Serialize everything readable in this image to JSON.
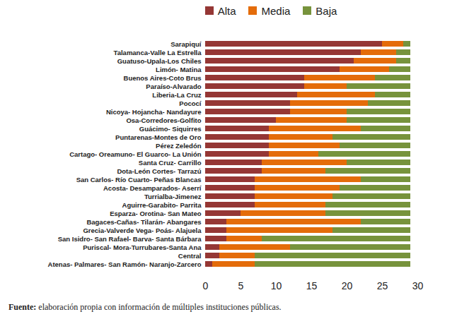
{
  "chart_data": {
    "type": "bar",
    "orientation": "horizontal",
    "stacked": true,
    "grid": false,
    "legend": "top",
    "caption": "Fuente: elaboración propia con información de múltiples instituciones públicas.",
    "categories": [
      "Sarapiquí",
      "Talamanca-Valle La Estrella",
      "Guatuso-Upala-Los Chiles",
      "Limón- Matina",
      "Buenos Aires-Coto Brus",
      "Paraíso-Alvarado",
      "Liberia-La Cruz",
      "Pococí",
      "Nicoya- Hojancha- Nandayure",
      "Osa-Corredores-Golfito",
      "Guácimo- Siquirres",
      "Puntarenas-Montes de Oro",
      "Pérez Zeledón",
      "Cartago- Oreamuno- El Guarco- La Unión",
      "Santa Cruz- Carrillo",
      "Dota-León Cortes- Tarrazú",
      "San Carlos- Río Cuarto- Peñas Blancas",
      "Acosta- Desamparados- Aserrí",
      "Turrialba-Jimenez",
      "Aguirre-Garabito- Parrita",
      "Esparza- Orotina- San Mateo",
      "Bagaces-Cañas- Tilarán- Abangares",
      "Grecia-Valverde Vega- Poás- Alajuela",
      "San Isidro- San Rafael- Barva- Santa Bárbara",
      "Puriscal- Mora-Turrubares-Santa Ana",
      "Central",
      "Atenas- Palmares- San Ramón- Naranjo-Zarcero"
    ],
    "series": [
      {
        "name": "Alta",
        "color": "#953735",
        "values": [
          25,
          22,
          21,
          19,
          14,
          14,
          13,
          12,
          12,
          10,
          9,
          9,
          9,
          9,
          8,
          8,
          7,
          7,
          7,
          7,
          5,
          3,
          3,
          3,
          2,
          2,
          1
        ]
      },
      {
        "name": "Media",
        "color": "#e46c0a",
        "values": [
          3,
          5,
          6,
          7,
          10,
          6,
          11,
          11,
          8,
          10,
          13,
          9,
          10,
          7,
          12,
          9,
          15,
          12,
          11,
          10,
          12,
          19,
          15,
          5,
          10,
          5,
          6
        ]
      },
      {
        "name": "Baja",
        "color": "#77933c",
        "values": [
          1,
          2,
          2,
          3,
          5,
          9,
          5,
          6,
          9,
          9,
          7,
          11,
          10,
          13,
          9,
          12,
          7,
          10,
          11,
          12,
          12,
          7,
          11,
          21,
          17,
          22,
          22
        ]
      }
    ],
    "xlim": [
      0,
      30
    ],
    "xticks": [
      0,
      5,
      10,
      15,
      20,
      25,
      30
    ]
  }
}
